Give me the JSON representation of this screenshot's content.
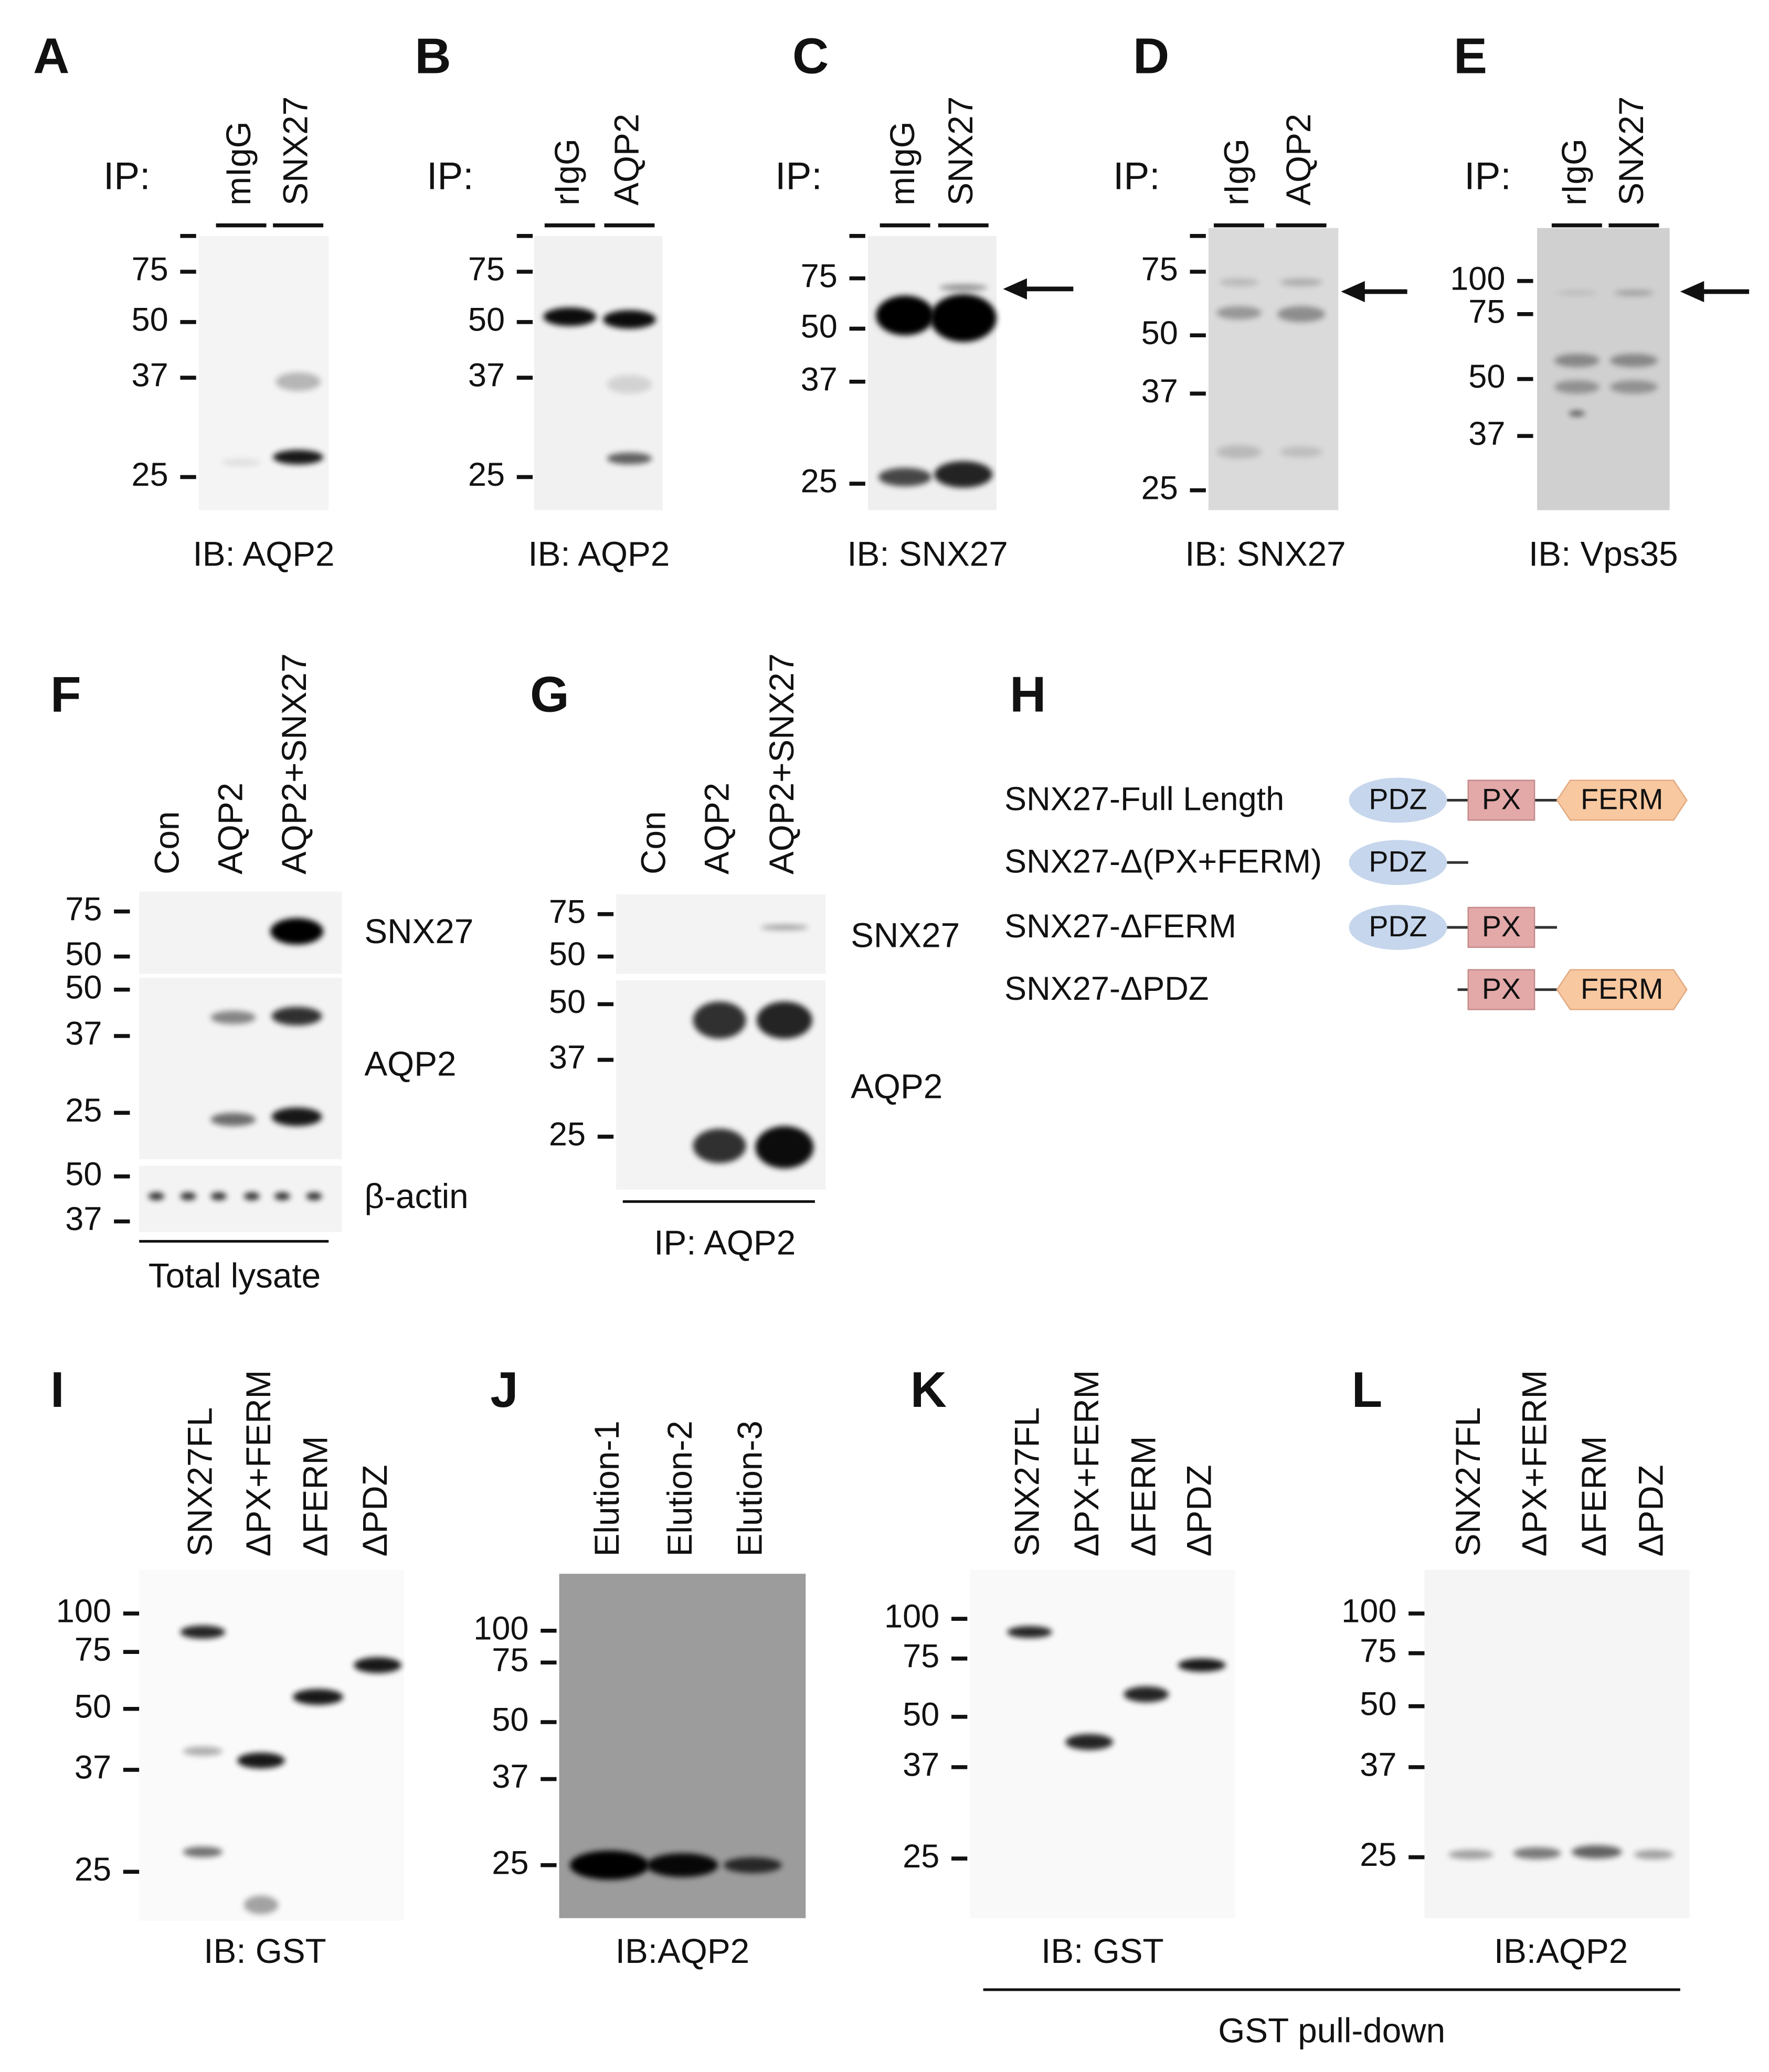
{
  "panels": {
    "A": {
      "label": "A",
      "ip": "IP:",
      "lanes": [
        "mIgG",
        "SNX27"
      ],
      "markers": [
        "75",
        "50",
        "37",
        "25"
      ],
      "antibody": "IB: AQP2"
    },
    "B": {
      "label": "B",
      "ip": "IP:",
      "lanes": [
        "rIgG",
        "AQP2"
      ],
      "markers": [
        "75",
        "50",
        "37",
        "25"
      ],
      "antibody": "IB: AQP2"
    },
    "C": {
      "label": "C",
      "ip": "IP:",
      "lanes": [
        "mIgG",
        "SNX27"
      ],
      "markers": [
        "75",
        "50",
        "37",
        "25"
      ],
      "antibody": "IB: SNX27"
    },
    "D": {
      "label": "D",
      "ip": "IP:",
      "lanes": [
        "rIgG",
        "AQP2"
      ],
      "markers": [
        "75",
        "50",
        "37",
        "25"
      ],
      "antibody": "IB: SNX27"
    },
    "E": {
      "label": "E",
      "ip": "IP:",
      "lanes": [
        "rIgG",
        "SNX27"
      ],
      "markers": [
        "100",
        "75",
        "50",
        "37"
      ],
      "antibody": "IB: Vps35"
    },
    "F": {
      "label": "F",
      "lanes": [
        "Con",
        "AQP2",
        "AQP2+SNX27"
      ],
      "markers": [
        "75",
        "50",
        "50",
        "37",
        "25",
        "50",
        "37"
      ],
      "targets": [
        "SNX27",
        "AQP2",
        "β-actin"
      ],
      "caption": "Total lysate"
    },
    "G": {
      "label": "G",
      "lanes": [
        "Con",
        "AQP2",
        "AQP2+SNX27"
      ],
      "markers": [
        "75",
        "50",
        "50",
        "37",
        "25"
      ],
      "targets": [
        "SNX27",
        "AQP2"
      ],
      "caption": "IP: AQP2"
    },
    "H": {
      "label": "H",
      "constructs": [
        {
          "name": "SNX27-Full Length",
          "domains": [
            "PDZ",
            "PX",
            "FERM"
          ]
        },
        {
          "name": "SNX27-Δ(PX+FERM)",
          "domains": [
            "PDZ"
          ]
        },
        {
          "name": "SNX27-ΔFERM",
          "domains": [
            "PDZ",
            "PX"
          ]
        },
        {
          "name": "SNX27-ΔPDZ",
          "domains": [
            "PX",
            "FERM"
          ]
        }
      ]
    },
    "I": {
      "label": "I",
      "lanes": [
        "SNX27FL",
        "ΔPX+FERM",
        "ΔFERM",
        "ΔPDZ"
      ],
      "markers": [
        "100",
        "75",
        "50",
        "37",
        "25"
      ],
      "antibody": "IB: GST"
    },
    "J": {
      "label": "J",
      "lanes": [
        "Elution-1",
        "Elution-2",
        "Elution-3"
      ],
      "markers": [
        "100",
        "75",
        "50",
        "37",
        "25"
      ],
      "antibody": "IB:AQP2"
    },
    "K": {
      "label": "K",
      "lanes": [
        "SNX27FL",
        "ΔPX+FERM",
        "ΔFERM",
        "ΔPDZ"
      ],
      "markers": [
        "100",
        "75",
        "50",
        "37",
        "25"
      ],
      "antibody": "IB: GST"
    },
    "L": {
      "label": "L",
      "lanes": [
        "SNX27FL",
        "ΔPX+FERM",
        "ΔFERM",
        "ΔPDZ"
      ],
      "markers": [
        "100",
        "75",
        "50",
        "37",
        "25"
      ],
      "antibody": "IB:AQP2"
    }
  },
  "footer": "GST pull-down"
}
